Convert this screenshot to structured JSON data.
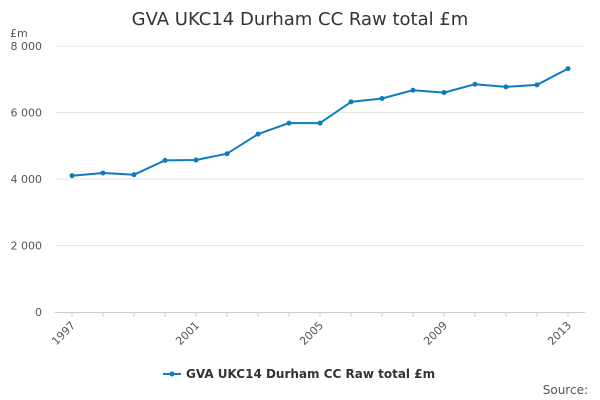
{
  "colors": {
    "series": "#0e7bbf",
    "grid": "#e6e6e6",
    "axis": "#cccccc",
    "text": "#333333"
  },
  "chart_data": {
    "type": "line",
    "title": "GVA UKC14 Durham CC Raw total £m",
    "ylabel": "£m",
    "xlabel": "",
    "ylim": [
      0,
      8000
    ],
    "yticks": [
      0,
      2000,
      4000,
      6000,
      8000
    ],
    "ytick_labels": [
      "0",
      "2 000",
      "4 000",
      "6 000",
      "8 000"
    ],
    "xlim": [
      1997,
      2013
    ],
    "xticks": [
      1997,
      2001,
      2005,
      2009,
      2013
    ],
    "xtick_labels": [
      "1997",
      "2001",
      "2005",
      "2009",
      "2013"
    ],
    "grid": "horizontal",
    "legend": "bottom-center",
    "x": [
      1997,
      1998,
      1999,
      2000,
      2001,
      2002,
      2003,
      2004,
      2005,
      2006,
      2007,
      2008,
      2009,
      2010,
      2011,
      2012,
      2013
    ],
    "series": [
      {
        "name": "GVA UKC14 Durham CC Raw total £m",
        "values": [
          4100,
          4180,
          4130,
          4560,
          4570,
          4760,
          5350,
          5680,
          5680,
          6320,
          6420,
          6670,
          6600,
          6850,
          6770,
          6830,
          7320
        ]
      }
    ],
    "source": "Source:"
  }
}
